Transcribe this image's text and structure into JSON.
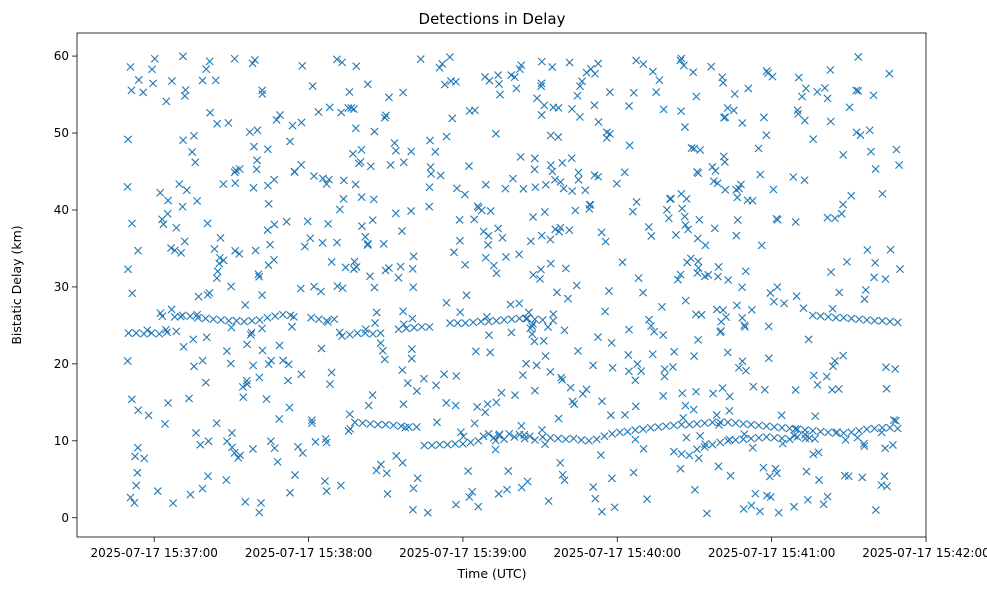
{
  "chart_data": {
    "type": "scatter",
    "title": "Detections in Delay",
    "xlabel": "Time (UTC)",
    "ylabel": "Bistatic Delay (km)",
    "x_unit": "seconds after 2025-07-17 15:36:30",
    "xlim": [
      0,
      330
    ],
    "ylim": [
      -2.5,
      63
    ],
    "xticks": [
      {
        "value": 30,
        "label": "2025-07-17 15:37:00"
      },
      {
        "value": 90,
        "label": "2025-07-17 15:38:00"
      },
      {
        "value": 150,
        "label": "2025-07-17 15:39:00"
      },
      {
        "value": 210,
        "label": "2025-07-17 15:40:00"
      },
      {
        "value": 270,
        "label": "2025-07-17 15:41:00"
      },
      {
        "value": 330,
        "label": "2025-07-17 15:42:00"
      }
    ],
    "yticks": [
      {
        "value": 0,
        "label": "0"
      },
      {
        "value": 10,
        "label": "10"
      },
      {
        "value": 20,
        "label": "20"
      },
      {
        "value": 30,
        "label": "30"
      },
      {
        "value": 40,
        "label": "40"
      },
      {
        "value": 50,
        "label": "50"
      },
      {
        "value": 60,
        "label": "60"
      }
    ],
    "marker": "x",
    "color": "#1f77b4",
    "series": [
      {
        "name": "noise",
        "seed": 7,
        "count": 780,
        "x_range": [
          19.5,
          320
        ],
        "y_range": [
          0.5,
          60
        ]
      },
      {
        "name": "track-upper-a",
        "points": [
          [
            20,
            24
          ],
          [
            23,
            24
          ],
          [
            26,
            23.9
          ],
          [
            29,
            24
          ],
          [
            32,
            23.9
          ],
          [
            35,
            24.1
          ],
          [
            38,
            26.1
          ],
          [
            41,
            26.3
          ],
          [
            44,
            26.2
          ],
          [
            47,
            26
          ],
          [
            50,
            25.9
          ],
          [
            53,
            25.8
          ],
          [
            56,
            25.7
          ],
          [
            59,
            25.6
          ],
          [
            62,
            25.6
          ],
          [
            65,
            25.5
          ],
          [
            68,
            25.6
          ],
          [
            71,
            25.7
          ],
          [
            74,
            26
          ],
          [
            77,
            26.2
          ],
          [
            80,
            26.4
          ],
          [
            83,
            26.3
          ]
        ]
      },
      {
        "name": "track-upper-b",
        "points": [
          [
            91,
            26
          ],
          [
            94,
            25.8
          ],
          [
            97,
            25.6
          ],
          [
            100,
            25.8
          ],
          [
            103,
            23.6
          ],
          [
            106,
            23.8
          ],
          [
            109,
            24
          ],
          [
            112,
            24
          ],
          [
            115,
            23.9
          ],
          [
            118,
            24
          ]
        ]
      },
      {
        "name": "track-upper-c",
        "points": [
          [
            125,
            24.5
          ],
          [
            128,
            24.6
          ],
          [
            131,
            24.7
          ],
          [
            134,
            24.8
          ],
          [
            137,
            24.8
          ],
          [
            145,
            25.3
          ],
          [
            148,
            25.3
          ],
          [
            151,
            25.3
          ],
          [
            154,
            25.4
          ],
          [
            157,
            25.5
          ],
          [
            160,
            25.5
          ],
          [
            163,
            25.6
          ],
          [
            166,
            25.7
          ],
          [
            169,
            25.8
          ],
          [
            172,
            25.9
          ],
          [
            175,
            25.9
          ],
          [
            178,
            25.8
          ],
          [
            181,
            25.7
          ]
        ]
      },
      {
        "name": "track-upper-d",
        "points": [
          [
            286,
            26.3
          ],
          [
            289,
            26.2
          ],
          [
            292,
            26.1
          ],
          [
            295,
            26
          ],
          [
            298,
            26
          ],
          [
            301,
            25.9
          ],
          [
            304,
            25.8
          ],
          [
            307,
            25.7
          ],
          [
            310,
            25.6
          ],
          [
            313,
            25.6
          ],
          [
            316,
            25.5
          ],
          [
            319,
            25.4
          ]
        ]
      },
      {
        "name": "track-lower",
        "points": [
          [
            108,
            12.4
          ],
          [
            111,
            12.3
          ],
          [
            114,
            12.2
          ],
          [
            117,
            12.1
          ],
          [
            120,
            12.1
          ],
          [
            123,
            12
          ],
          [
            126,
            11.9
          ],
          [
            129,
            11.8
          ],
          [
            132,
            11.8
          ],
          [
            135,
            9.4
          ],
          [
            138,
            9.4
          ],
          [
            141,
            9.5
          ],
          [
            144,
            9.5
          ],
          [
            147,
            9.6
          ],
          [
            150,
            9.6
          ],
          [
            153,
            9.8
          ],
          [
            156,
            10
          ],
          [
            158,
            10.6
          ],
          [
            160,
            10.9
          ],
          [
            162,
            10.4
          ],
          [
            164,
            10.7
          ],
          [
            166,
            10.2
          ],
          [
            168,
            10.9
          ],
          [
            170,
            10.5
          ],
          [
            172,
            10.8
          ],
          [
            174,
            10.3
          ],
          [
            176,
            10.6
          ],
          [
            178,
            10.1
          ],
          [
            181,
            10.5
          ],
          [
            184,
            10.4
          ],
          [
            187,
            10.3
          ],
          [
            190,
            10.2
          ],
          [
            193,
            10.3
          ],
          [
            196,
            10.1
          ],
          [
            199,
            10
          ],
          [
            202,
            10.2
          ],
          [
            205,
            10.6
          ],
          [
            208,
            10.9
          ],
          [
            211,
            11.1
          ],
          [
            214,
            11.2
          ],
          [
            217,
            11.4
          ],
          [
            220,
            11.5
          ],
          [
            223,
            11.7
          ],
          [
            226,
            11.8
          ],
          [
            229,
            11.9
          ],
          [
            232,
            12
          ],
          [
            235,
            12.1
          ],
          [
            238,
            12.1
          ],
          [
            241,
            12.2
          ],
          [
            244,
            12.3
          ],
          [
            247,
            12.4
          ],
          [
            250,
            12.4
          ],
          [
            253,
            12.4
          ],
          [
            256,
            12.3
          ],
          [
            259,
            12.2
          ],
          [
            262,
            12.1
          ],
          [
            265,
            12
          ],
          [
            268,
            11.9
          ],
          [
            271,
            11.8
          ],
          [
            274,
            11.7
          ],
          [
            277,
            11.6
          ],
          [
            280,
            11.5
          ],
          [
            283,
            11.4
          ],
          [
            286,
            11.3
          ],
          [
            289,
            11.2
          ],
          [
            292,
            11.1
          ],
          [
            295,
            11
          ],
          [
            298,
            11
          ],
          [
            301,
            11.1
          ],
          [
            304,
            11.3
          ],
          [
            307,
            11.5
          ],
          [
            310,
            11.6
          ],
          [
            313,
            11.7
          ],
          [
            316,
            11.7
          ],
          [
            319,
            11.6
          ]
        ]
      },
      {
        "name": "track-lower-b",
        "points": [
          [
            232,
            8.6
          ],
          [
            235,
            8.3
          ],
          [
            238,
            8.1
          ],
          [
            241,
            8.9
          ],
          [
            244,
            9.2
          ],
          [
            247,
            9.5
          ],
          [
            250,
            9.8
          ],
          [
            253,
            10
          ],
          [
            256,
            10.1
          ],
          [
            259,
            10.2
          ],
          [
            262,
            10.3
          ],
          [
            265,
            10.4
          ],
          [
            268,
            10.5
          ],
          [
            271,
            10.4
          ],
          [
            274,
            10.3
          ],
          [
            277,
            10.2
          ],
          [
            280,
            10.5
          ],
          [
            283,
            10.8
          ]
        ]
      }
    ]
  }
}
